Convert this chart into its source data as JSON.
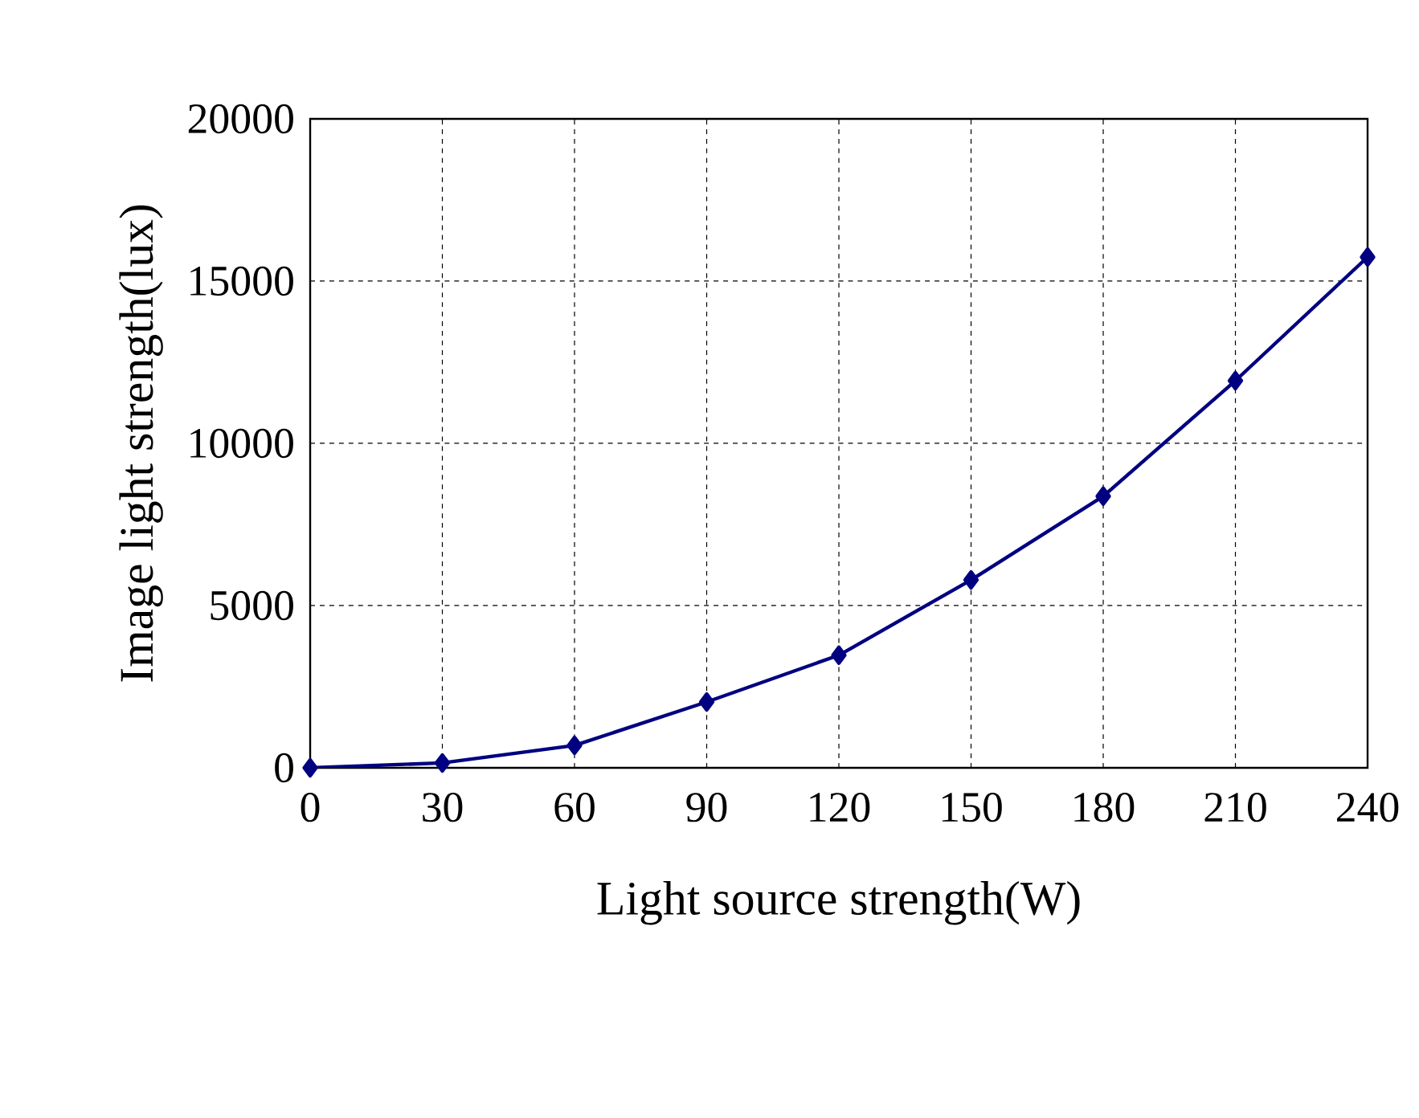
{
  "chart_data": {
    "type": "line",
    "xlabel": "Light source strength(W)",
    "ylabel": "Image light strength(lux)",
    "x": [
      0,
      30,
      60,
      90,
      120,
      150,
      180,
      210,
      240
    ],
    "series": [
      {
        "color": "#000080",
        "values": [
          0,
          150,
          690,
          2030,
          3470,
          5790,
          8370,
          11930,
          15740
        ]
      }
    ],
    "xlim": [
      0,
      240
    ],
    "xticks": [
      0,
      30,
      60,
      90,
      120,
      150,
      180,
      210,
      240
    ],
    "ylim": [
      0,
      20000
    ],
    "yticks": [
      0,
      5000,
      10000,
      15000,
      20000
    ],
    "grid": true,
    "marker": "diamond",
    "line_style": "solid"
  }
}
